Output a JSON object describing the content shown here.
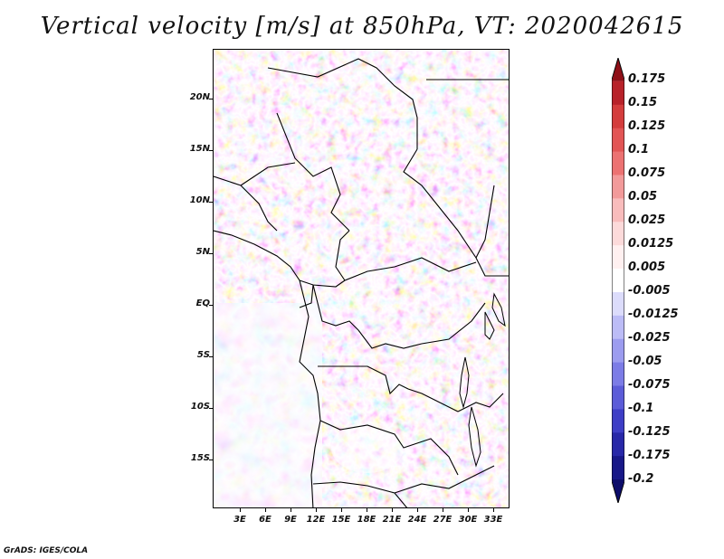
{
  "title": "Vertical velocity [m/s] at 850hPa, VT: 2020042615",
  "credit": "GrADS: IGES/COLA",
  "lat_labels": [
    "20N",
    "15N",
    "10N",
    "5N",
    "EQ",
    "5S",
    "10S",
    "15S"
  ],
  "lon_labels": [
    "3E",
    "6E",
    "9E",
    "12E",
    "15E",
    "18E",
    "21E",
    "24E",
    "27E",
    "30E",
    "33E"
  ],
  "colorbar": {
    "levels": [
      "0.175",
      "0.15",
      "0.125",
      "0.1",
      "0.075",
      "0.05",
      "0.025",
      "0.0125",
      "0.005",
      "-0.005",
      "-0.0125",
      "-0.025",
      "-0.05",
      "-0.075",
      "-0.1",
      "-0.125",
      "-0.175",
      "-0.2"
    ],
    "colors": [
      "#8f0f17",
      "#b8222a",
      "#d43d3d",
      "#e25555",
      "#ec7272",
      "#f29a9a",
      "#f8bcbc",
      "#fcdada",
      "#fff0f0",
      "#ffffff",
      "#dcdcfb",
      "#bcbcf6",
      "#9c9cef",
      "#7c7ce6",
      "#5c5cd8",
      "#3e3ec6",
      "#2828a8",
      "#181888",
      "#0c0c6a"
    ]
  }
}
